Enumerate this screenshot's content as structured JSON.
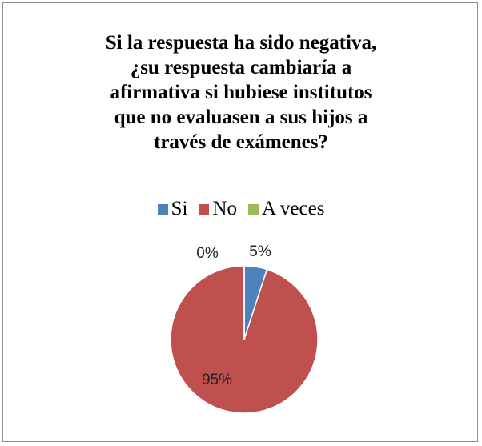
{
  "chart_data": {
    "type": "pie",
    "title_lines": [
      "Si la respuesta ha sido negativa,",
      "¿su respuesta cambiaría a",
      "afirmativa si hubiese institutos",
      "que no evaluasen a sus hijos a",
      "través de exámenes?"
    ],
    "legend_position": "top",
    "slices": [
      {
        "label": "Si",
        "value": 5,
        "display": "5%",
        "color": "#4f81bd"
      },
      {
        "label": "No",
        "value": 95,
        "display": "95%",
        "color": "#c0504d"
      },
      {
        "label": "A veces",
        "value": 0,
        "display": "0%",
        "color": "#9bbb59"
      }
    ]
  }
}
